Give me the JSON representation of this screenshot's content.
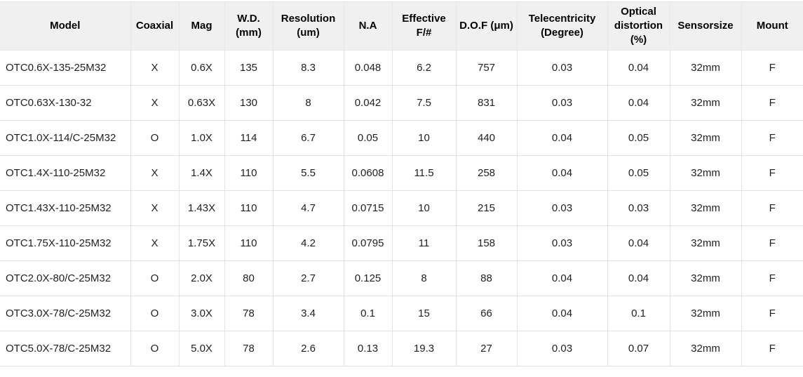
{
  "colors": {
    "header_background": "#f0f0f0",
    "border": "#e2e2e2",
    "text": "#1f1f1f"
  },
  "table": {
    "columns": [
      {
        "key": "model",
        "label": "Model"
      },
      {
        "key": "coaxial",
        "label": "Coaxial"
      },
      {
        "key": "mag",
        "label": "Mag"
      },
      {
        "key": "wd",
        "label": "W.D. (mm)"
      },
      {
        "key": "resolution",
        "label": "Resolution (um)"
      },
      {
        "key": "na",
        "label": "N.A"
      },
      {
        "key": "effective-f",
        "label": "Effective F/#"
      },
      {
        "key": "dof",
        "label": "D.O.F (μm)"
      },
      {
        "key": "telecentricity",
        "label": "Telecentricity (Degree)"
      },
      {
        "key": "optical-distortion",
        "label": "Optical distortion (%)"
      },
      {
        "key": "sensorsize",
        "label": "Sensorsize"
      },
      {
        "key": "mount",
        "label": "Mount"
      }
    ],
    "rows": [
      [
        "OTC0.6X-135-25M32",
        "X",
        "0.6X",
        "135",
        "8.3",
        "0.048",
        "6.2",
        "757",
        "0.03",
        "0.04",
        "32mm",
        "F"
      ],
      [
        "OTC0.63X-130-32",
        "X",
        "0.63X",
        "130",
        "8",
        "0.042",
        "7.5",
        "831",
        "0.03",
        "0.04",
        "32mm",
        "F"
      ],
      [
        "OTC1.0X-114/C-25M32",
        "O",
        "1.0X",
        "114",
        "6.7",
        "0.05",
        "10",
        "440",
        "0.04",
        "0.05",
        "32mm",
        "F"
      ],
      [
        "OTC1.4X-110-25M32",
        "X",
        "1.4X",
        "110",
        "5.5",
        "0.0608",
        "11.5",
        "258",
        "0.04",
        "0.05",
        "32mm",
        "F"
      ],
      [
        "OTC1.43X-110-25M32",
        "X",
        "1.43X",
        "110",
        "4.7",
        "0.0715",
        "10",
        "215",
        "0.03",
        "0.03",
        "32mm",
        "F"
      ],
      [
        "OTC1.75X-110-25M32",
        "X",
        "1.75X",
        "110",
        "4.2",
        "0.0795",
        "11",
        "158",
        "0.03",
        "0.04",
        "32mm",
        "F"
      ],
      [
        "OTC2.0X-80/C-25M32",
        "O",
        "2.0X",
        "80",
        "2.7",
        "0.125",
        "8",
        "88",
        "0.04",
        "0.04",
        "32mm",
        "F"
      ],
      [
        "OTC3.0X-78/C-25M32",
        "O",
        "3.0X",
        "78",
        "3.4",
        "0.1",
        "15",
        "66",
        "0.04",
        "0.1",
        "32mm",
        "F"
      ],
      [
        "OTC5.0X-78/C-25M32",
        "O",
        "5.0X",
        "78",
        "2.6",
        "0.13",
        "19.3",
        "27",
        "0.03",
        "0.07",
        "32mm",
        "F"
      ]
    ]
  }
}
